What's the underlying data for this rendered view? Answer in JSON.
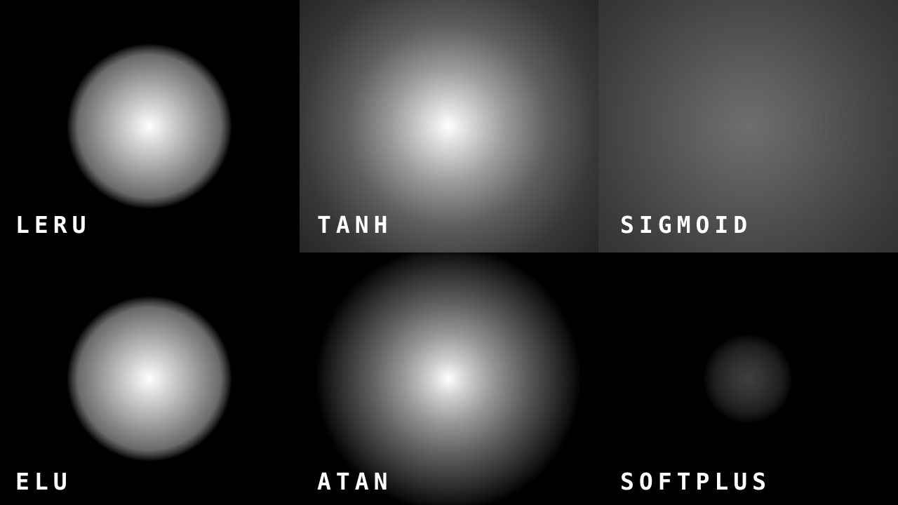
{
  "panels": [
    {
      "label": "LERU"
    },
    {
      "label": "TANH"
    },
    {
      "label": "SIGMOID"
    },
    {
      "label": "ELU"
    },
    {
      "label": "ATAN"
    },
    {
      "label": "SOFTPLUS"
    }
  ]
}
